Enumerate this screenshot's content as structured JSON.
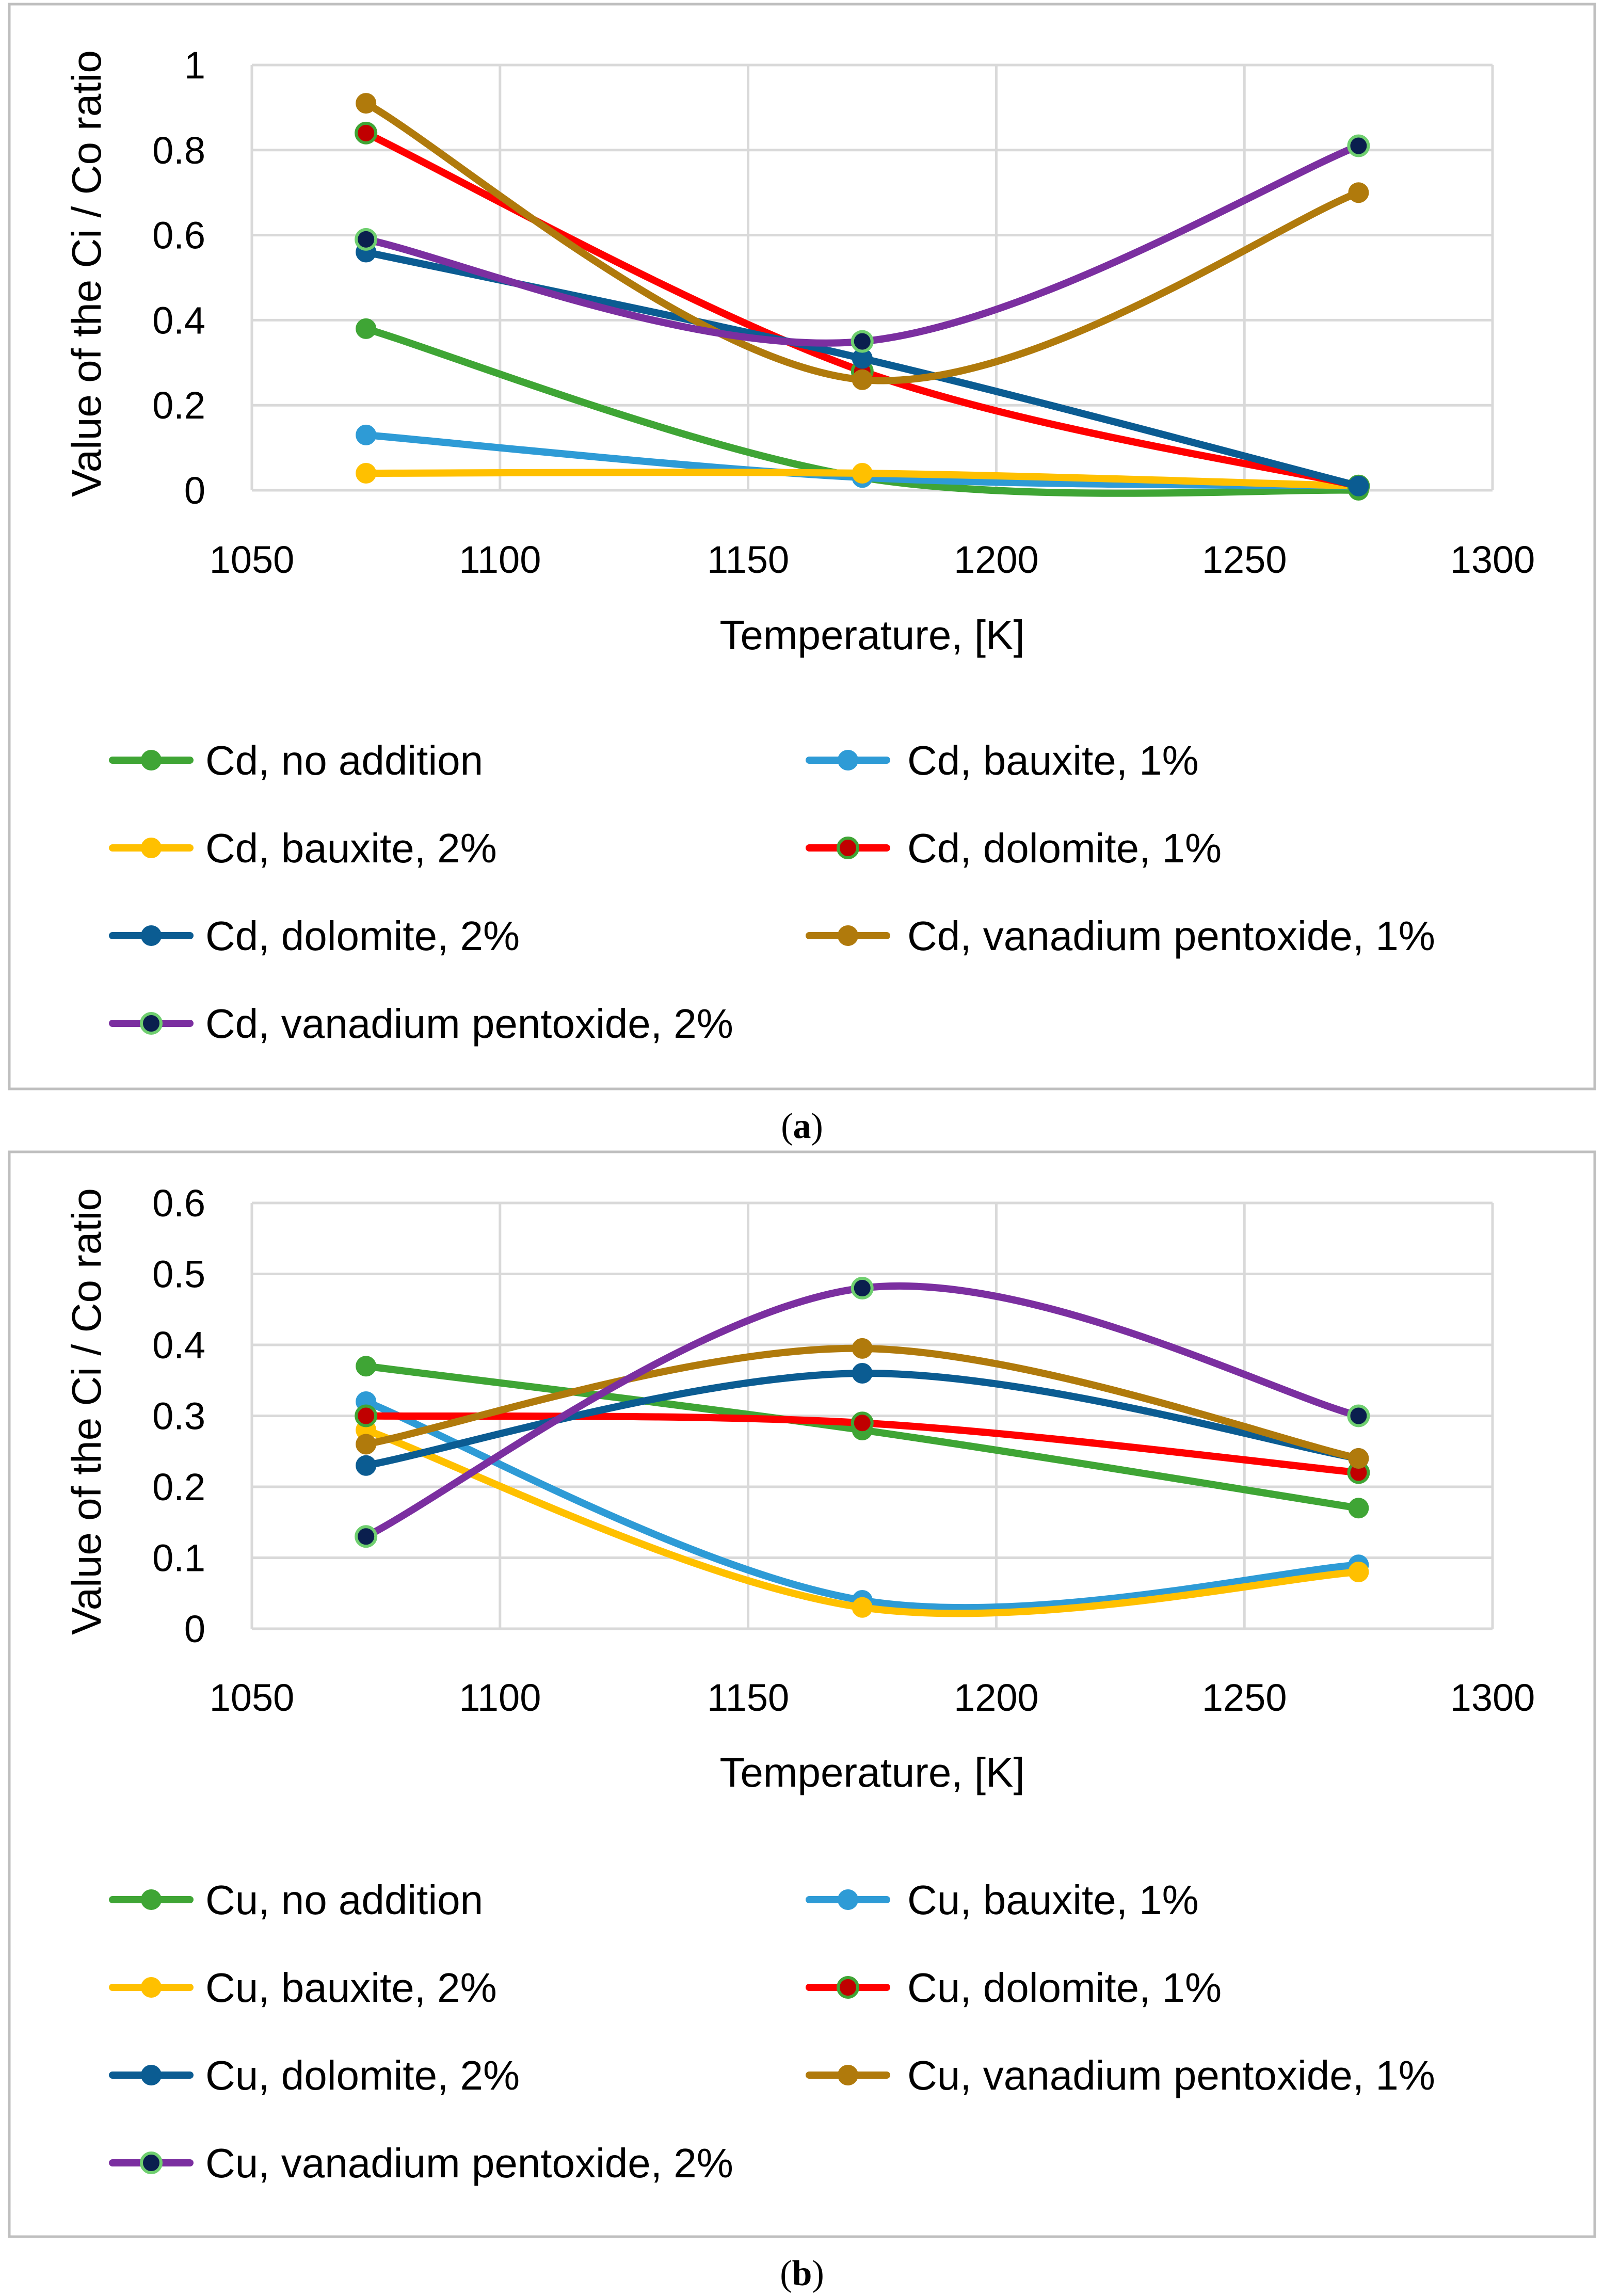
{
  "chart_data": [
    {
      "type": "line",
      "panel_label": "a",
      "title": "",
      "xlabel": "Temperature, [K]",
      "ylabel": "Value of the Ci / Co ratio",
      "xlim": [
        1050,
        1300
      ],
      "ylim": [
        0,
        1
      ],
      "xticks": [
        1050,
        1100,
        1150,
        1200,
        1250,
        1300
      ],
      "yticks": [
        0,
        0.2,
        0.4,
        0.6,
        0.8,
        1
      ],
      "ytick_labels": [
        "0",
        "0.2",
        "0.4",
        "0.6",
        "0.8",
        "1"
      ],
      "grid": true,
      "smooth": true,
      "legend_position": "bottom",
      "x": [
        1073,
        1173,
        1273
      ],
      "series": [
        {
          "name": "Cd, no addition",
          "values": [
            0.38,
            0.03,
            0.0
          ],
          "color": "#3FA535",
          "marker_color": "#3FA535"
        },
        {
          "name": "Cd, bauxite, 1%",
          "values": [
            0.13,
            0.03,
            0.01
          ],
          "color": "#2E9BD6",
          "marker_color": "#2E9BD6"
        },
        {
          "name": "Cd, bauxite, 2%",
          "values": [
            0.04,
            0.04,
            0.01
          ],
          "color": "#FFC000",
          "marker_color": "#FFC000"
        },
        {
          "name": "Cd, dolomite, 1%",
          "values": [
            0.84,
            0.28,
            0.01
          ],
          "color": "#FF0000",
          "marker_color": "#C00000",
          "marker_edge": "#3FA535"
        },
        {
          "name": "Cd, dolomite, 2%",
          "values": [
            0.56,
            0.31,
            0.01
          ],
          "color": "#0B5C92",
          "marker_color": "#0B5C92"
        },
        {
          "name": "Cd, vanadium pentoxide, 1%",
          "values": [
            0.91,
            0.26,
            0.7
          ],
          "color": "#B07A0C",
          "marker_color": "#B07A0C"
        },
        {
          "name": "Cd, vanadium pentoxide, 2%",
          "values": [
            0.59,
            0.35,
            0.81
          ],
          "color": "#7B2FA0",
          "marker_color": "#0A1F4E",
          "marker_edge": "#6FCF6F"
        }
      ]
    },
    {
      "type": "line",
      "panel_label": "b",
      "title": "",
      "xlabel": "Temperature, [K]",
      "ylabel": "Value of the Ci / Co ratio",
      "xlim": [
        1050,
        1300
      ],
      "ylim": [
        0,
        0.6
      ],
      "xticks": [
        1050,
        1100,
        1150,
        1200,
        1250,
        1300
      ],
      "yticks": [
        0,
        0.1,
        0.2,
        0.3,
        0.4,
        0.5,
        0.6
      ],
      "ytick_labels": [
        "0",
        "0.1",
        "0.2",
        "0.3",
        "0.4",
        "0.5",
        "0.6"
      ],
      "grid": true,
      "smooth": true,
      "legend_position": "bottom",
      "x": [
        1073,
        1173,
        1273
      ],
      "series": [
        {
          "name": "Cu, no addition",
          "values": [
            0.37,
            0.28,
            0.17
          ],
          "color": "#3FA535",
          "marker_color": "#3FA535"
        },
        {
          "name": "Cu, bauxite, 1%",
          "values": [
            0.32,
            0.04,
            0.09
          ],
          "color": "#2E9BD6",
          "marker_color": "#2E9BD6"
        },
        {
          "name": "Cu, bauxite, 2%",
          "values": [
            0.28,
            0.03,
            0.08
          ],
          "color": "#FFC000",
          "marker_color": "#FFC000"
        },
        {
          "name": "Cu, dolomite, 1%",
          "values": [
            0.3,
            0.29,
            0.22
          ],
          "color": "#FF0000",
          "marker_color": "#C00000",
          "marker_edge": "#3FA535"
        },
        {
          "name": "Cu, dolomite, 2%",
          "values": [
            0.23,
            0.36,
            0.24
          ],
          "color": "#0B5C92",
          "marker_color": "#0B5C92"
        },
        {
          "name": "Cu, vanadium pentoxide, 1%",
          "values": [
            0.26,
            0.395,
            0.24
          ],
          "color": "#B07A0C",
          "marker_color": "#B07A0C"
        },
        {
          "name": "Cu, vanadium pentoxide, 2%",
          "values": [
            0.13,
            0.48,
            0.3
          ],
          "color": "#7B2FA0",
          "marker_color": "#0A1F4E",
          "marker_edge": "#6FCF6F"
        }
      ]
    }
  ]
}
